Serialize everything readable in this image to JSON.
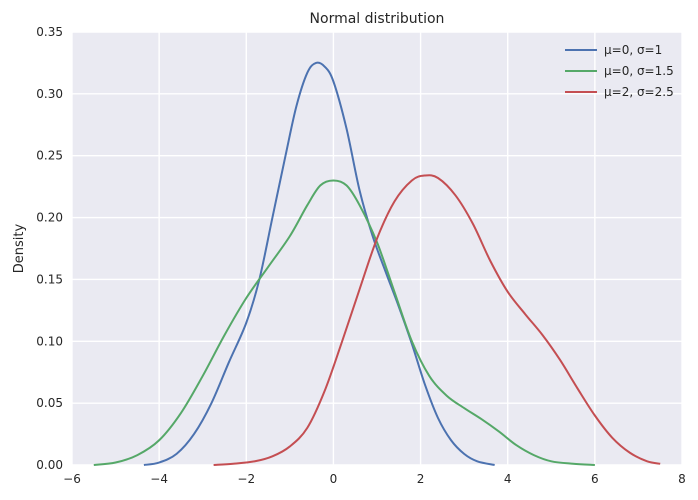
{
  "chart_data": {
    "type": "line",
    "title": "Normal distribution",
    "xlabel": "",
    "ylabel": "Density",
    "xlim": [
      -6,
      8
    ],
    "ylim": [
      0,
      0.35
    ],
    "xticks": [
      -6,
      -4,
      -2,
      0,
      2,
      4,
      6,
      8
    ],
    "xtick_labels": [
      "−6",
      "−4",
      "−2",
      "0",
      "2",
      "4",
      "6",
      "8"
    ],
    "yticks": [
      0,
      0.05,
      0.1,
      0.15,
      0.2,
      0.25,
      0.3,
      0.35
    ],
    "ytick_labels": [
      "0.00",
      "0.05",
      "0.10",
      "0.15",
      "0.20",
      "0.25",
      "0.30",
      "0.35"
    ],
    "grid": true,
    "legend_position": "top-right",
    "series": [
      {
        "name": "μ=0, σ=1",
        "color": "#4c72b0",
        "points": [
          [
            -4.35,
            0.0
          ],
          [
            -4.0,
            0.002
          ],
          [
            -3.6,
            0.009
          ],
          [
            -3.2,
            0.025
          ],
          [
            -2.8,
            0.05
          ],
          [
            -2.4,
            0.083
          ],
          [
            -2.0,
            0.115
          ],
          [
            -1.7,
            0.15
          ],
          [
            -1.4,
            0.2
          ],
          [
            -1.1,
            0.25
          ],
          [
            -0.85,
            0.29
          ],
          [
            -0.6,
            0.317
          ],
          [
            -0.4,
            0.325
          ],
          [
            -0.2,
            0.322
          ],
          [
            0.0,
            0.31
          ],
          [
            0.3,
            0.272
          ],
          [
            0.6,
            0.222
          ],
          [
            0.9,
            0.185
          ],
          [
            1.2,
            0.156
          ],
          [
            1.5,
            0.128
          ],
          [
            1.8,
            0.098
          ],
          [
            2.1,
            0.065
          ],
          [
            2.4,
            0.038
          ],
          [
            2.7,
            0.02
          ],
          [
            3.0,
            0.009
          ],
          [
            3.3,
            0.003
          ],
          [
            3.7,
            0.0
          ]
        ]
      },
      {
        "name": "μ=0, σ=1.5",
        "color": "#55a868",
        "points": [
          [
            -5.5,
            0.0
          ],
          [
            -5.0,
            0.002
          ],
          [
            -4.5,
            0.008
          ],
          [
            -4.0,
            0.02
          ],
          [
            -3.5,
            0.042
          ],
          [
            -3.0,
            0.072
          ],
          [
            -2.5,
            0.105
          ],
          [
            -2.0,
            0.135
          ],
          [
            -1.5,
            0.16
          ],
          [
            -1.0,
            0.185
          ],
          [
            -0.6,
            0.21
          ],
          [
            -0.3,
            0.226
          ],
          [
            0.0,
            0.23
          ],
          [
            0.3,
            0.226
          ],
          [
            0.6,
            0.21
          ],
          [
            1.0,
            0.18
          ],
          [
            1.4,
            0.14
          ],
          [
            1.8,
            0.1
          ],
          [
            2.2,
            0.072
          ],
          [
            2.6,
            0.056
          ],
          [
            3.0,
            0.046
          ],
          [
            3.4,
            0.037
          ],
          [
            3.8,
            0.027
          ],
          [
            4.2,
            0.016
          ],
          [
            4.6,
            0.008
          ],
          [
            5.0,
            0.003
          ],
          [
            5.5,
            0.001
          ],
          [
            6.0,
            0.0
          ]
        ]
      },
      {
        "name": "μ=2, σ=2.5",
        "color": "#c44e52",
        "points": [
          [
            -2.75,
            0.0
          ],
          [
            -2.3,
            0.001
          ],
          [
            -1.8,
            0.003
          ],
          [
            -1.4,
            0.007
          ],
          [
            -1.0,
            0.015
          ],
          [
            -0.6,
            0.03
          ],
          [
            -0.2,
            0.06
          ],
          [
            0.2,
            0.1
          ],
          [
            0.6,
            0.142
          ],
          [
            1.0,
            0.183
          ],
          [
            1.4,
            0.213
          ],
          [
            1.8,
            0.23
          ],
          [
            2.1,
            0.234
          ],
          [
            2.4,
            0.232
          ],
          [
            2.8,
            0.218
          ],
          [
            3.2,
            0.195
          ],
          [
            3.6,
            0.165
          ],
          [
            4.0,
            0.14
          ],
          [
            4.4,
            0.122
          ],
          [
            4.8,
            0.105
          ],
          [
            5.2,
            0.085
          ],
          [
            5.6,
            0.062
          ],
          [
            6.0,
            0.04
          ],
          [
            6.4,
            0.022
          ],
          [
            6.8,
            0.01
          ],
          [
            7.2,
            0.003
          ],
          [
            7.5,
            0.001
          ]
        ]
      }
    ]
  }
}
